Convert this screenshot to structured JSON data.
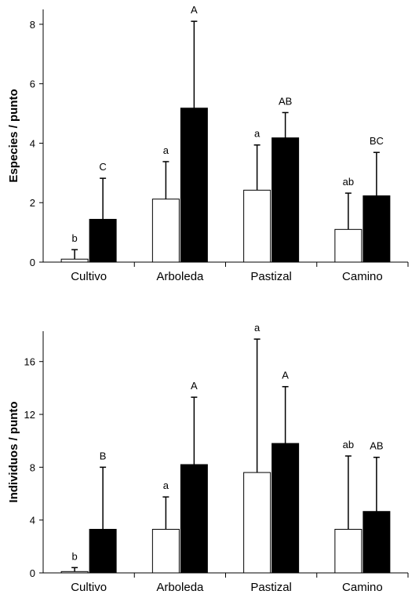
{
  "chart_data": [
    {
      "type": "bar",
      "ylabel": "Especies / punto",
      "xlabel": "",
      "ylim": [
        0,
        8.5
      ],
      "yticks": [
        0,
        2,
        4,
        6,
        8
      ],
      "categories": [
        "Cultivo",
        "Arboleda",
        "Pastizal",
        "Camino"
      ],
      "series": [
        {
          "color": "#ffffff",
          "values": [
            0.1,
            2.12,
            2.42,
            1.1
          ],
          "error": [
            0.32,
            1.26,
            1.52,
            1.22
          ],
          "sig": [
            "b",
            "a",
            "a",
            "ab"
          ]
        },
        {
          "color": "#000000",
          "values": [
            1.44,
            5.18,
            4.18,
            2.23
          ],
          "error": [
            1.38,
            2.92,
            0.85,
            1.46
          ],
          "sig": [
            "C",
            "A",
            "AB",
            "BC"
          ]
        }
      ],
      "grid": false,
      "legend": "none"
    },
    {
      "type": "bar",
      "ylabel": "Individuos / punto",
      "xlabel": "",
      "ylim": [
        0,
        18.3
      ],
      "yticks": [
        0,
        4,
        8,
        12,
        16
      ],
      "categories": [
        "Cultivo",
        "Arboleda",
        "Pastizal",
        "Camino"
      ],
      "series": [
        {
          "color": "#ffffff",
          "values": [
            0.1,
            3.3,
            7.6,
            3.3
          ],
          "error": [
            0.3,
            2.45,
            10.1,
            5.55
          ],
          "sig": [
            "b",
            "a",
            "a",
            "ab"
          ]
        },
        {
          "color": "#000000",
          "values": [
            3.3,
            8.2,
            9.8,
            4.65
          ],
          "error": [
            4.7,
            5.1,
            4.3,
            4.1
          ],
          "sig": [
            "B",
            "A",
            "A",
            "AB"
          ]
        }
      ],
      "grid": false,
      "legend": "none"
    }
  ]
}
